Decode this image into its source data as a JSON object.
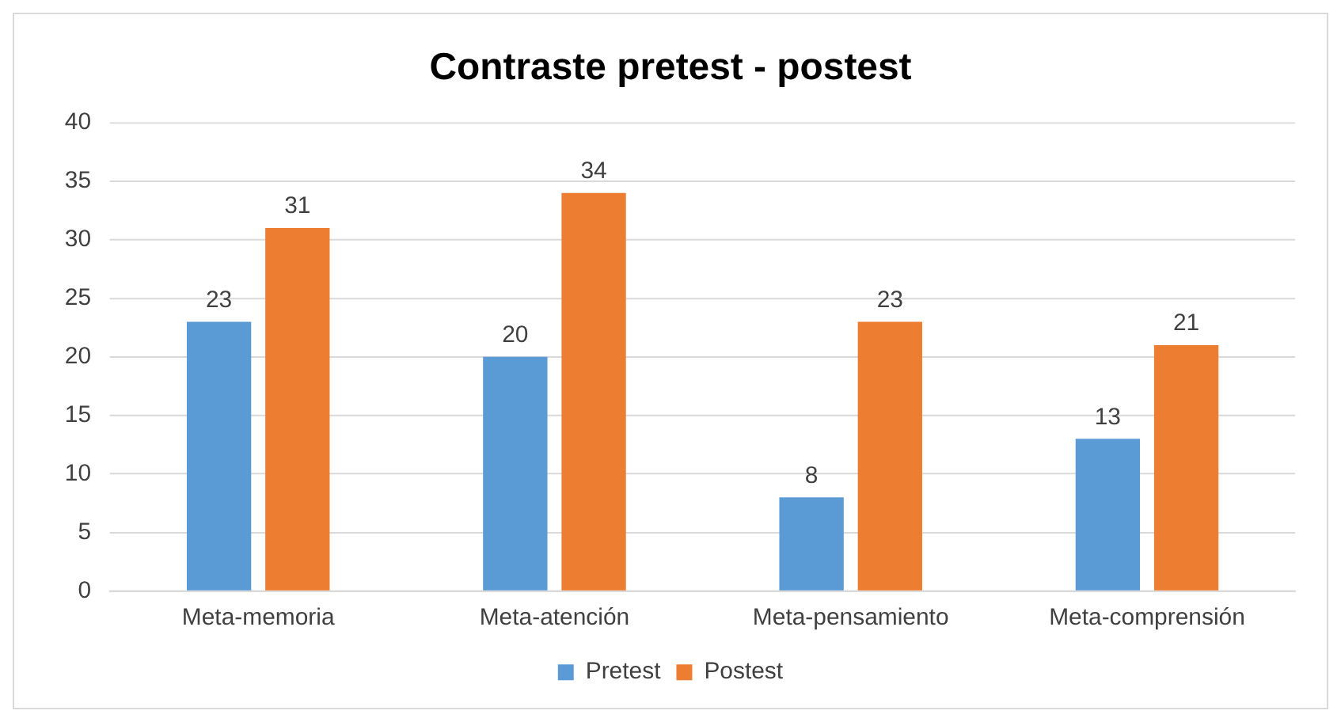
{
  "chart_data": {
    "type": "bar",
    "title": "Contraste pretest - postest",
    "categories": [
      "Meta-memoria",
      "Meta-atención",
      "Meta-pensamiento",
      "Meta-comprensión"
    ],
    "series": [
      {
        "name": "Pretest",
        "color": "#5b9bd5",
        "values": [
          23,
          20,
          8,
          13
        ]
      },
      {
        "name": "Postest",
        "color": "#ed7d31",
        "values": [
          31,
          34,
          23,
          21
        ]
      }
    ],
    "ylim": [
      0,
      40
    ],
    "yticks": [
      0,
      5,
      10,
      15,
      20,
      25,
      30,
      35,
      40
    ],
    "grid": "y",
    "legend": "bottom",
    "data_labels": true
  }
}
